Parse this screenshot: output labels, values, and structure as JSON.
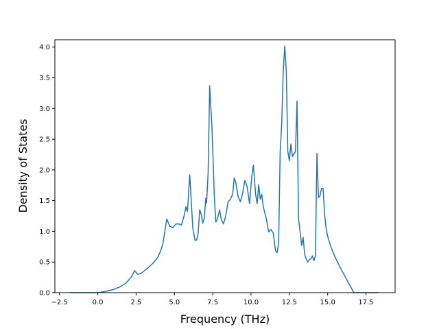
{
  "chart_data": {
    "type": "line",
    "title": "",
    "xlabel": "Frequency (THz)",
    "ylabel": "Density of States",
    "xlim": [
      -2.8,
      19.4
    ],
    "ylim": [
      0.0,
      4.12
    ],
    "grid": false,
    "legend": "none",
    "xticks": [
      -2.5,
      0.0,
      2.5,
      5.0,
      7.5,
      10.0,
      12.5,
      15.0,
      17.5
    ],
    "xtick_labels": [
      "−2.5",
      "0.0",
      "2.5",
      "5.0",
      "7.5",
      "10.0",
      "12.5",
      "15.0",
      "17.5"
    ],
    "yticks": [
      0.0,
      0.5,
      1.0,
      1.5,
      2.0,
      2.5,
      3.0,
      3.5,
      4.0
    ],
    "ytick_labels": [
      "0.0",
      "0.5",
      "1.0",
      "1.5",
      "2.0",
      "2.5",
      "3.0",
      "3.5",
      "4.0"
    ],
    "colors": {
      "series": "#1f77b4"
    },
    "series": [
      {
        "x": [
          -1.8,
          -1.0,
          0.0,
          0.5,
          1.0,
          1.5,
          1.8,
          2.0,
          2.2,
          2.4,
          2.6,
          2.8,
          3.0,
          3.3,
          3.6,
          3.9,
          4.1,
          4.25,
          4.35,
          4.5,
          4.7,
          4.9,
          5.1,
          5.3,
          5.45,
          5.55,
          5.65,
          5.75,
          5.85,
          6.0,
          6.2,
          6.35,
          6.45,
          6.55,
          6.65,
          6.75,
          6.85,
          6.95,
          7.05,
          7.1,
          7.2,
          7.3,
          7.45,
          7.6,
          7.7,
          7.8,
          7.95,
          8.05,
          8.2,
          8.35,
          8.5,
          8.65,
          8.8,
          8.9,
          9.0,
          9.15,
          9.3,
          9.45,
          9.6,
          9.75,
          9.9,
          10.05,
          10.15,
          10.3,
          10.4,
          10.5,
          10.6,
          10.7,
          10.8,
          11.0,
          11.15,
          11.3,
          11.45,
          11.6,
          11.7,
          11.8,
          11.9,
          12.0,
          12.1,
          12.2,
          12.3,
          12.4,
          12.5,
          12.6,
          12.7,
          12.8,
          12.9,
          13.0,
          13.1,
          13.2,
          13.3,
          13.4,
          13.5,
          13.6,
          13.7,
          13.8,
          13.9,
          14.0,
          14.1,
          14.2,
          14.3,
          14.4,
          14.5,
          14.6,
          14.7,
          14.8,
          14.9,
          15.0,
          15.2,
          15.5,
          15.8,
          16.1,
          16.4,
          16.6,
          16.7,
          17.0,
          17.5,
          18.0,
          18.3
        ],
        "y": [
          0.0,
          0.0,
          0.0,
          0.02,
          0.05,
          0.1,
          0.15,
          0.2,
          0.26,
          0.36,
          0.3,
          0.31,
          0.35,
          0.41,
          0.48,
          0.57,
          0.68,
          0.8,
          0.96,
          1.2,
          1.08,
          1.06,
          1.12,
          1.12,
          1.1,
          1.18,
          1.27,
          1.4,
          1.32,
          1.92,
          1.05,
          0.85,
          0.86,
          0.97,
          1.35,
          1.28,
          1.13,
          1.22,
          1.54,
          1.46,
          1.95,
          3.37,
          2.7,
          1.6,
          1.15,
          1.2,
          1.35,
          1.2,
          1.12,
          1.25,
          1.48,
          1.52,
          1.6,
          1.87,
          1.8,
          1.57,
          1.48,
          1.62,
          1.83,
          1.72,
          1.45,
          1.9,
          2.08,
          1.6,
          1.45,
          1.76,
          1.52,
          1.6,
          1.4,
          1.2,
          0.99,
          1.03,
          0.97,
          0.68,
          0.65,
          0.8,
          2.3,
          2.75,
          3.6,
          4.02,
          3.6,
          2.3,
          2.15,
          2.42,
          2.22,
          2.26,
          2.3,
          3.12,
          1.2,
          1.0,
          0.77,
          0.9,
          0.62,
          0.55,
          0.5,
          0.54,
          0.55,
          0.6,
          0.52,
          0.6,
          2.27,
          1.55,
          1.58,
          1.7,
          1.7,
          1.28,
          1.05,
          0.92,
          0.75,
          0.57,
          0.42,
          0.28,
          0.14,
          0.05,
          0.0,
          0.0,
          0.0,
          0.0,
          0.0
        ]
      }
    ]
  }
}
